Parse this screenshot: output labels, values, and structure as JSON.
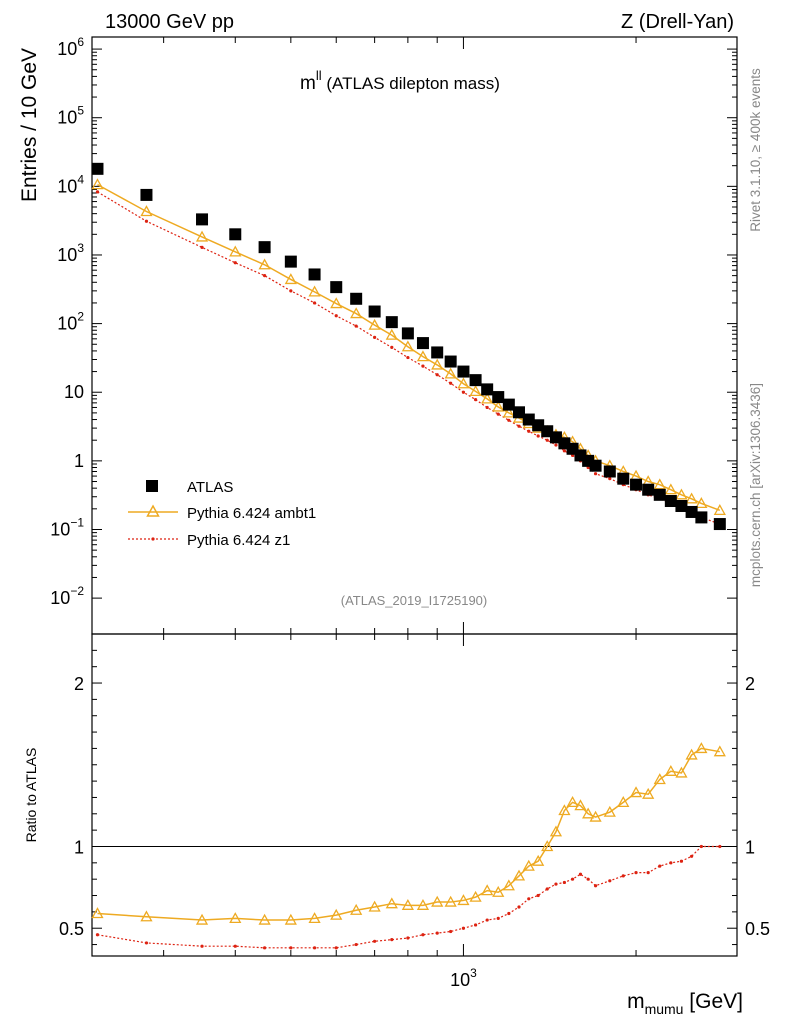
{
  "header": {
    "beam_label": "13000 GeV pp",
    "process_label": "Z (Drell-Yan)",
    "plot_title_sym": "m",
    "plot_title_sup": "ll",
    "plot_title_rest": " (ATLAS dilepton mass)",
    "analysis_id": "(ATLAS_2019_I1725190)"
  },
  "side_labels": {
    "rivet": "Rivet 3.1.10, ≥ 400k events",
    "mcplots": "mcplots.cern.ch [arXiv:1306.3436]"
  },
  "axes": {
    "y_label": "Entries / 10 GeV",
    "ratio_label": "Ratio to ATLAS",
    "x_label_main": "m",
    "x_label_sub": "mumu",
    "x_label_unit": " [GeV]",
    "x_tick_base": "10",
    "x_tick_exp": "3",
    "y_ticks": [
      {
        "v": 1000000,
        "base": "10",
        "exp": "6"
      },
      {
        "v": 100000,
        "base": "10",
        "exp": "5"
      },
      {
        "v": 10000,
        "base": "10",
        "exp": "4"
      },
      {
        "v": 1000,
        "base": "10",
        "exp": "3"
      },
      {
        "v": 100,
        "base": "10",
        "exp": "2"
      },
      {
        "v": 10,
        "base": "10",
        "exp": ""
      },
      {
        "v": 1,
        "base": "1",
        "exp": ""
      },
      {
        "v": 0.1,
        "base": "10",
        "exp": "−1"
      },
      {
        "v": 0.01,
        "base": "10",
        "exp": "−2"
      }
    ],
    "ratio_ticks": [
      {
        "v": 0.5,
        "label": "0.5"
      },
      {
        "v": 1,
        "label": "1"
      },
      {
        "v": 2,
        "label": "2"
      }
    ]
  },
  "legend": {
    "data": "ATLAS",
    "mc1": "Pythia 6.424 ambt1",
    "mc2": "Pythia 6.424 z1"
  },
  "colors": {
    "data": "#000000",
    "mc1": "#eeaa22",
    "mc2": "#dd2211",
    "side_text": "#888888"
  },
  "chart_data": {
    "type": "scatter",
    "xscale": "log",
    "xlim": [
      225,
      3000
    ],
    "ylim": [
      0.003,
      1500000
    ],
    "ratio_ylim": [
      0.33,
      2.3
    ],
    "series": [
      {
        "name": "ATLAS",
        "points": [
          [
            230,
            18000
          ],
          [
            280,
            7500
          ],
          [
            350,
            3300
          ],
          [
            400,
            2000
          ],
          [
            450,
            1300
          ],
          [
            500,
            800
          ],
          [
            550,
            520
          ],
          [
            600,
            340
          ],
          [
            650,
            230
          ],
          [
            700,
            150
          ],
          [
            750,
            105
          ],
          [
            800,
            72
          ],
          [
            850,
            52
          ],
          [
            900,
            38
          ],
          [
            950,
            28
          ],
          [
            1000,
            20
          ],
          [
            1050,
            15
          ],
          [
            1100,
            11
          ],
          [
            1150,
            8.5
          ],
          [
            1200,
            6.6
          ],
          [
            1250,
            5.1
          ],
          [
            1300,
            4.0
          ],
          [
            1350,
            3.3
          ],
          [
            1400,
            2.7
          ],
          [
            1450,
            2.2
          ],
          [
            1500,
            1.8
          ],
          [
            1550,
            1.5
          ],
          [
            1600,
            1.2
          ],
          [
            1650,
            1.0
          ],
          [
            1700,
            0.85
          ],
          [
            1800,
            0.7
          ],
          [
            1900,
            0.55
          ],
          [
            2000,
            0.45
          ],
          [
            2100,
            0.38
          ],
          [
            2200,
            0.32
          ],
          [
            2300,
            0.26
          ],
          [
            2400,
            0.22
          ],
          [
            2500,
            0.18
          ],
          [
            2600,
            0.15
          ],
          [
            2800,
            0.12
          ]
        ]
      },
      {
        "name": "Pythia 6.424 ambt1",
        "points": [
          [
            230,
            10600
          ],
          [
            280,
            4300
          ],
          [
            350,
            1830
          ],
          [
            400,
            1110
          ],
          [
            450,
            720
          ],
          [
            500,
            440
          ],
          [
            550,
            290
          ],
          [
            600,
            196
          ],
          [
            650,
            140
          ],
          [
            700,
            95
          ],
          [
            750,
            68
          ],
          [
            800,
            46
          ],
          [
            850,
            33
          ],
          [
            900,
            25
          ],
          [
            950,
            18.5
          ],
          [
            1000,
            13.3
          ],
          [
            1050,
            10.3
          ],
          [
            1100,
            8.0
          ],
          [
            1150,
            6.1
          ],
          [
            1200,
            5.0
          ],
          [
            1250,
            4.2
          ],
          [
            1300,
            3.5
          ],
          [
            1350,
            3.0
          ],
          [
            1400,
            2.7
          ],
          [
            1450,
            2.4
          ],
          [
            1500,
            2.2
          ],
          [
            1550,
            1.9
          ],
          [
            1600,
            1.5
          ],
          [
            1650,
            1.2
          ],
          [
            1700,
            1.0
          ],
          [
            1800,
            0.85
          ],
          [
            1900,
            0.7
          ],
          [
            2000,
            0.6
          ],
          [
            2100,
            0.5
          ],
          [
            2200,
            0.45
          ],
          [
            2300,
            0.38
          ],
          [
            2400,
            0.32
          ],
          [
            2500,
            0.28
          ],
          [
            2600,
            0.24
          ],
          [
            2800,
            0.19
          ]
        ]
      },
      {
        "name": "Pythia 6.424 z1",
        "points": [
          [
            230,
            8300
          ],
          [
            280,
            3100
          ],
          [
            350,
            1290
          ],
          [
            400,
            770
          ],
          [
            450,
            500
          ],
          [
            500,
            300
          ],
          [
            550,
            200
          ],
          [
            600,
            130
          ],
          [
            650,
            92
          ],
          [
            700,
            63
          ],
          [
            750,
            45
          ],
          [
            800,
            32
          ],
          [
            850,
            24
          ],
          [
            900,
            18
          ],
          [
            950,
            13.5
          ],
          [
            1000,
            10
          ],
          [
            1050,
            7.8
          ],
          [
            1100,
            6.0
          ],
          [
            1150,
            4.8
          ],
          [
            1200,
            3.9
          ],
          [
            1250,
            3.2
          ],
          [
            1300,
            2.7
          ],
          [
            1350,
            2.3
          ],
          [
            1400,
            2.0
          ],
          [
            1450,
            1.7
          ],
          [
            1500,
            1.4
          ],
          [
            1550,
            1.2
          ],
          [
            1600,
            1.0
          ],
          [
            1650,
            0.8
          ],
          [
            1700,
            0.65
          ],
          [
            1800,
            0.55
          ],
          [
            1900,
            0.45
          ],
          [
            2000,
            0.38
          ],
          [
            2100,
            0.32
          ],
          [
            2200,
            0.28
          ],
          [
            2300,
            0.24
          ],
          [
            2400,
            0.2
          ],
          [
            2500,
            0.17
          ],
          [
            2600,
            0.15
          ],
          [
            2800,
            0.12
          ]
        ]
      }
    ],
    "ratio_series": [
      {
        "name": "Pythia 6.424 ambt1",
        "points": [
          [
            230,
            0.59
          ],
          [
            280,
            0.57
          ],
          [
            350,
            0.55
          ],
          [
            400,
            0.56
          ],
          [
            450,
            0.55
          ],
          [
            500,
            0.55
          ],
          [
            550,
            0.56
          ],
          [
            600,
            0.58
          ],
          [
            650,
            0.61
          ],
          [
            700,
            0.63
          ],
          [
            750,
            0.65
          ],
          [
            800,
            0.64
          ],
          [
            850,
            0.64
          ],
          [
            900,
            0.66
          ],
          [
            950,
            0.66
          ],
          [
            1000,
            0.67
          ],
          [
            1050,
            0.69
          ],
          [
            1100,
            0.73
          ],
          [
            1150,
            0.72
          ],
          [
            1200,
            0.76
          ],
          [
            1250,
            0.82
          ],
          [
            1300,
            0.88
          ],
          [
            1350,
            0.91
          ],
          [
            1400,
            1.0
          ],
          [
            1450,
            1.09
          ],
          [
            1500,
            1.22
          ],
          [
            1550,
            1.27
          ],
          [
            1600,
            1.25
          ],
          [
            1650,
            1.2
          ],
          [
            1700,
            1.18
          ],
          [
            1800,
            1.21
          ],
          [
            1900,
            1.27
          ],
          [
            2000,
            1.33
          ],
          [
            2100,
            1.32
          ],
          [
            2200,
            1.41
          ],
          [
            2300,
            1.46
          ],
          [
            2400,
            1.45
          ],
          [
            2500,
            1.56
          ],
          [
            2600,
            1.6
          ],
          [
            2800,
            1.58
          ]
        ]
      },
      {
        "name": "Pythia 6.424 z1",
        "points": [
          [
            230,
            0.46
          ],
          [
            280,
            0.41
          ],
          [
            350,
            0.39
          ],
          [
            400,
            0.39
          ],
          [
            450,
            0.38
          ],
          [
            500,
            0.38
          ],
          [
            550,
            0.38
          ],
          [
            600,
            0.38
          ],
          [
            650,
            0.4
          ],
          [
            700,
            0.42
          ],
          [
            750,
            0.43
          ],
          [
            800,
            0.44
          ],
          [
            850,
            0.46
          ],
          [
            900,
            0.47
          ],
          [
            950,
            0.48
          ],
          [
            1000,
            0.5
          ],
          [
            1050,
            0.52
          ],
          [
            1100,
            0.55
          ],
          [
            1150,
            0.56
          ],
          [
            1200,
            0.59
          ],
          [
            1250,
            0.63
          ],
          [
            1300,
            0.68
          ],
          [
            1350,
            0.7
          ],
          [
            1400,
            0.74
          ],
          [
            1450,
            0.77
          ],
          [
            1500,
            0.78
          ],
          [
            1550,
            0.8
          ],
          [
            1600,
            0.83
          ],
          [
            1650,
            0.8
          ],
          [
            1700,
            0.76
          ],
          [
            1800,
            0.79
          ],
          [
            1900,
            0.82
          ],
          [
            2000,
            0.84
          ],
          [
            2100,
            0.84
          ],
          [
            2200,
            0.88
          ],
          [
            2300,
            0.9
          ],
          [
            2400,
            0.91
          ],
          [
            2500,
            0.94
          ],
          [
            2600,
            1.0
          ],
          [
            2800,
            1.0
          ]
        ]
      }
    ]
  }
}
